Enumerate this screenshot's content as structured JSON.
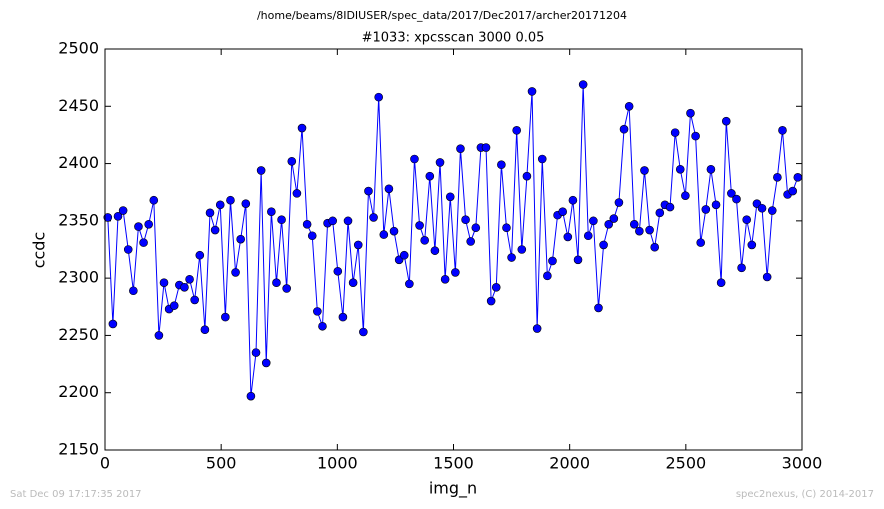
{
  "chart_data": {
    "type": "line",
    "suptitle": "/home/beams/8IDIUSER/spec_data/2017/Dec2017/archer20171204",
    "title": "#1033: xpcsscan 3000 0.05",
    "xlabel": "img_n",
    "ylabel": "ccdc",
    "footer_left": "Sat Dec 09 17:17:35 2017",
    "footer_right": "spec2nexus, (C) 2014-2017",
    "xlim": [
      0,
      3000
    ],
    "xticks": [
      0,
      500,
      1000,
      1500,
      2000,
      2500,
      3000
    ],
    "ylim": [
      2150,
      2500
    ],
    "yticks": [
      2150,
      2200,
      2250,
      2300,
      2350,
      2400,
      2450,
      2500
    ],
    "grid": false,
    "x": [
      12,
      34,
      56,
      78,
      100,
      122,
      144,
      166,
      188,
      210,
      232,
      254,
      276,
      298,
      320,
      342,
      364,
      386,
      408,
      430,
      452,
      474,
      496,
      518,
      540,
      562,
      584,
      606,
      628,
      650,
      672,
      694,
      716,
      738,
      760,
      782,
      804,
      826,
      848,
      870,
      892,
      914,
      936,
      958,
      980,
      1002,
      1024,
      1046,
      1068,
      1090,
      1112,
      1134,
      1156,
      1178,
      1200,
      1222,
      1244,
      1266,
      1288,
      1310,
      1332,
      1354,
      1376,
      1398,
      1420,
      1442,
      1464,
      1486,
      1508,
      1530,
      1552,
      1574,
      1596,
      1618,
      1640,
      1662,
      1684,
      1706,
      1728,
      1750,
      1772,
      1794,
      1816,
      1838,
      1860,
      1882,
      1904,
      1926,
      1948,
      1970,
      1992,
      2014,
      2036,
      2058,
      2080,
      2102,
      2124,
      2146,
      2168,
      2190,
      2212,
      2234,
      2256,
      2278,
      2300,
      2322,
      2344,
      2366,
      2388,
      2410,
      2432,
      2454,
      2476,
      2498,
      2520,
      2542,
      2564,
      2586,
      2608,
      2630,
      2652,
      2674,
      2696,
      2718,
      2740,
      2762,
      2784,
      2806,
      2828,
      2850,
      2872,
      2894,
      2916,
      2938,
      2960,
      2982
    ],
    "series": [
      {
        "color": "#0000ff",
        "values": [
          2353,
          2260,
          2354,
          2359,
          2325,
          2289,
          2345,
          2331,
          2347,
          2368,
          2250,
          2296,
          2273,
          2276,
          2294,
          2292,
          2299,
          2281,
          2320,
          2255,
          2357,
          2342,
          2364,
          2266,
          2368,
          2305,
          2334,
          2365,
          2197,
          2235,
          2394,
          2226,
          2358,
          2296,
          2351,
          2291,
          2402,
          2374,
          2431,
          2347,
          2337,
          2271,
          2258,
          2348,
          2350,
          2306,
          2266,
          2350,
          2296,
          2329,
          2253,
          2376,
          2353,
          2458,
          2338,
          2378,
          2341,
          2316,
          2320,
          2295,
          2404,
          2346,
          2333,
          2389,
          2324,
          2401,
          2299,
          2371,
          2305,
          2413,
          2351,
          2332,
          2344,
          2414,
          2414,
          2280,
          2292,
          2399,
          2344,
          2318,
          2429,
          2325,
          2389,
          2463,
          2256,
          2404,
          2302,
          2315,
          2355,
          2358,
          2336,
          2368,
          2316,
          2469,
          2337,
          2350,
          2274,
          2329,
          2347,
          2352,
          2366,
          2430,
          2450,
          2347,
          2341,
          2394,
          2342,
          2327,
          2357,
          2364,
          2362,
          2427,
          2395,
          2372,
          2444,
          2424,
          2331,
          2360,
          2395,
          2364,
          2296,
          2437,
          2374,
          2369,
          2309,
          2351,
          2329,
          2365,
          2361,
          2301,
          2359,
          2388,
          2429,
          2373,
          2376,
          2388
        ]
      }
    ]
  }
}
